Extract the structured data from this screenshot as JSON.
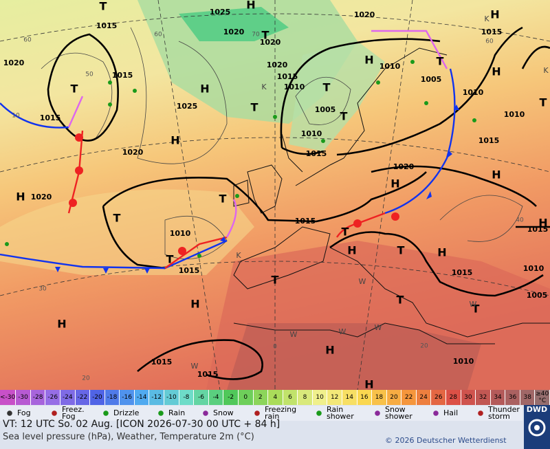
{
  "map": {
    "isobar_labels": [
      1025,
      1015,
      1020,
      1020,
      1020,
      1015,
      1020,
      1015,
      1020,
      1015,
      1010,
      1010,
      1005,
      1010,
      1025,
      1015,
      1005,
      1010,
      1010,
      1015,
      1015,
      1020,
      1020,
      1020,
      1010,
      1015,
      1015,
      1015,
      1015,
      1010,
      1005,
      1015,
      1015,
      1010
    ],
    "grid_labels": [
      60,
      60,
      50,
      70,
      60,
      40,
      30,
      20,
      0,
      20,
      10
    ],
    "highs": [
      "H",
      "H",
      "H",
      "H",
      "H",
      "H",
      "H",
      "H",
      "H",
      "H",
      "H",
      "H",
      "H",
      "H",
      "H",
      "H"
    ],
    "lows": [
      "T",
      "T",
      "T",
      "T",
      "T",
      "T",
      "T",
      "T",
      "T",
      "T",
      "T",
      "T",
      "T",
      "T",
      "T",
      "T"
    ],
    "k_marks": [
      "K",
      "K",
      "K",
      "K"
    ],
    "w_marks": [
      "W",
      "W",
      "W",
      "W",
      "W",
      "W"
    ]
  },
  "legend": {
    "scale": [
      "<-30",
      "-30",
      "-28",
      "-26",
      "-24",
      "-22",
      "-20",
      "-18",
      "-16",
      "-14",
      "-12",
      "-10",
      "-8",
      "-6",
      "-4",
      "-2",
      "0",
      "2",
      "4",
      "6",
      "8",
      "10",
      "12",
      "14",
      "16",
      "18",
      "20",
      "22",
      "24",
      "26",
      "28",
      "30",
      "32",
      "34",
      "36",
      "38",
      "≥40 °C"
    ],
    "weather": [
      "Fog",
      "Freez. Fog",
      "Drizzle",
      "Rain",
      "Snow",
      "Freezing rain",
      "Rain shower",
      "Snow shower",
      "Hail",
      "Thunder storm"
    ]
  },
  "footer": {
    "valid_time": "VT: 12 UTC So.  02 Aug. [ICON 2026-07-30  00 UTC + 84 h]",
    "description": "Sea level pressure (hPa), Weather, Temperature 2m (°C)",
    "copyright": "© 2026 Deutscher Wetterdienst",
    "logo": "DWD"
  }
}
